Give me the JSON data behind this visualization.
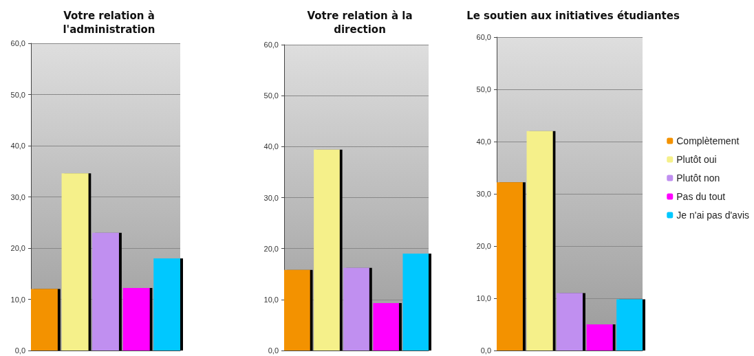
{
  "chart_data": [
    {
      "type": "bar",
      "title": "Votre relation à\nl'administration",
      "categories": [
        null
      ],
      "series": [
        {
          "color": "#f39200",
          "values": [
            12.0
          ]
        },
        {
          "color": "#f5f08a",
          "values": [
            34.6
          ]
        },
        {
          "color": "#c08ff0",
          "values": [
            23.0
          ]
        },
        {
          "color": "#ff00ff",
          "values": [
            12.2
          ]
        },
        {
          "color": "#00c8ff",
          "values": [
            18.0
          ]
        }
      ],
      "ylim": [
        0,
        60
      ],
      "yticks": [
        {
          "value": 0,
          "label": "0,0"
        },
        {
          "value": 10,
          "label": "10,0"
        },
        {
          "value": 20,
          "label": "20,0"
        },
        {
          "value": 30,
          "label": "30,0"
        },
        {
          "value": 40,
          "label": "40,0"
        },
        {
          "value": 50,
          "label": "50,0"
        },
        {
          "value": 60,
          "label": "60,0"
        }
      ],
      "grid": "y"
    },
    {
      "type": "bar",
      "title": "Votre relation à la\ndirection",
      "categories": [
        null
      ],
      "series": [
        {
          "color": "#f39200",
          "values": [
            15.8
          ]
        },
        {
          "color": "#f5f08a",
          "values": [
            39.4
          ]
        },
        {
          "color": "#c08ff0",
          "values": [
            16.2
          ]
        },
        {
          "color": "#ff00ff",
          "values": [
            9.3
          ]
        },
        {
          "color": "#00c8ff",
          "values": [
            19.0
          ]
        }
      ],
      "ylim": [
        0,
        60
      ],
      "yticks": [
        {
          "value": 0,
          "label": "0,0"
        },
        {
          "value": 10,
          "label": "10,0"
        },
        {
          "value": 20,
          "label": "20,0"
        },
        {
          "value": 30,
          "label": "30,0"
        },
        {
          "value": 40,
          "label": "40,0"
        },
        {
          "value": 50,
          "label": "50,0"
        },
        {
          "value": 60,
          "label": "60,0"
        }
      ],
      "grid": "y"
    },
    {
      "type": "bar",
      "title": "Le soutien aux initiatives étudiantes",
      "categories": [
        null
      ],
      "series": [
        {
          "name": "Complètement",
          "color": "#f39200",
          "values": [
            32.2
          ]
        },
        {
          "name": "Plutôt oui",
          "color": "#f5f08a",
          "values": [
            42.0
          ]
        },
        {
          "name": "Plutôt non",
          "color": "#c08ff0",
          "values": [
            11.0
          ]
        },
        {
          "name": "Pas du tout",
          "color": "#ff00ff",
          "values": [
            5.0
          ]
        },
        {
          "name": "Je n'ai pas d'avis",
          "color": "#00c8ff",
          "values": [
            9.8
          ]
        }
      ],
      "ylim": [
        0,
        60
      ],
      "yticks": [
        {
          "value": 0,
          "label": "0,0"
        },
        {
          "value": 10,
          "label": "10,0"
        },
        {
          "value": 20,
          "label": "20,0"
        },
        {
          "value": 30,
          "label": "30,0"
        },
        {
          "value": 40,
          "label": "40,0"
        },
        {
          "value": 50,
          "label": "50,0"
        },
        {
          "value": 60,
          "label": "60,0"
        }
      ],
      "grid": "y",
      "legend": "right"
    }
  ]
}
